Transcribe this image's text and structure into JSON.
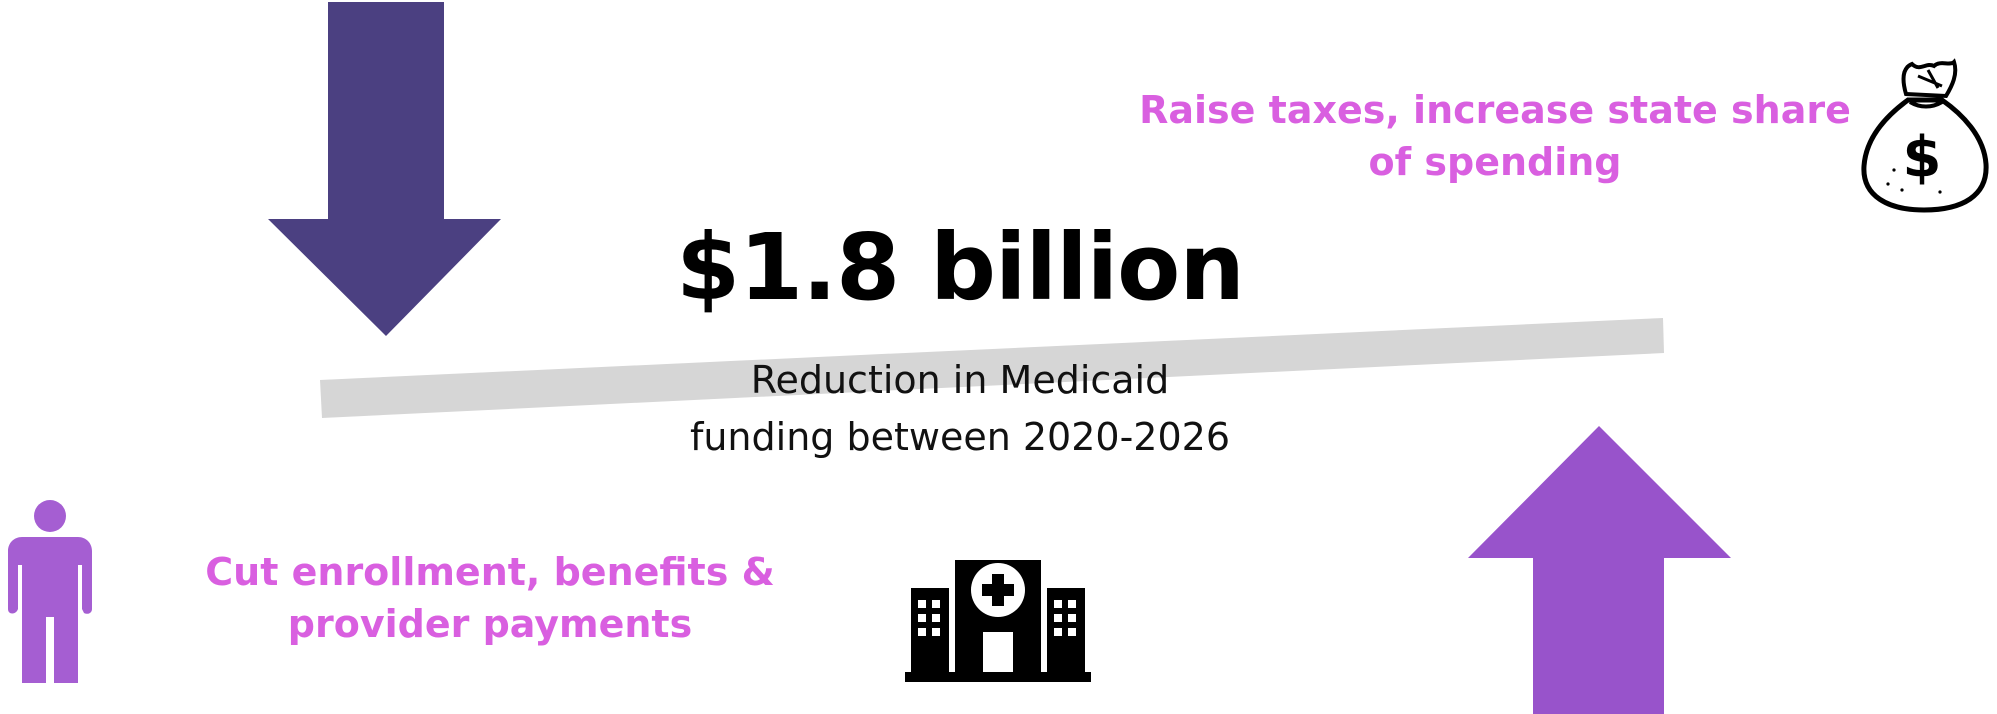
{
  "headline": "$1.8 billion",
  "subtext_line1": "Reduction in Medicaid",
  "subtext_line2": "funding between 2020-2026",
  "options": {
    "raise_taxes": "Raise taxes, increase state share of spending",
    "cut_enrollment": "Cut enrollment, benefits & provider payments"
  },
  "colors": {
    "down_arrow": "#4b4081",
    "up_arrow": "#9853cb",
    "option_text": "#d95fe0",
    "person_icon": "#a55ed2",
    "balance_beam": "#d6d6d6"
  },
  "icons": [
    "money-bag-icon",
    "person-icon",
    "hospital-icon"
  ]
}
